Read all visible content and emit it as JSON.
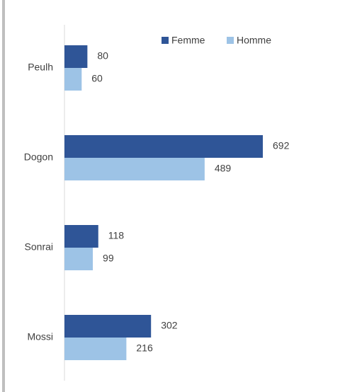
{
  "chart_data": {
    "type": "bar",
    "orientation": "horizontal",
    "categories": [
      "Peulh",
      "Dogon",
      "Sonrai",
      "Mossi"
    ],
    "series": [
      {
        "name": "Femme",
        "color": "#2f5597",
        "values": [
          80,
          692,
          118,
          302
        ]
      },
      {
        "name": "Homme",
        "color": "#9dc3e6",
        "values": [
          60,
          489,
          99,
          216
        ]
      }
    ],
    "legend": "top-right"
  }
}
